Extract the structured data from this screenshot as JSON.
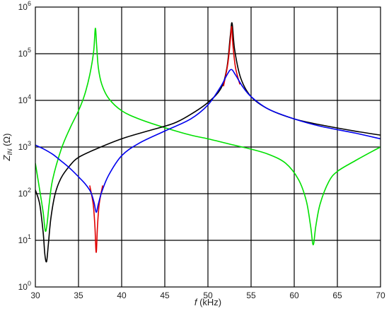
{
  "chart_data": {
    "type": "line",
    "title": "",
    "xlabel_symbol": "f",
    "xlabel_unit": " (kHz)",
    "ylabel_symbol": "Z",
    "ylabel_sub": "IN",
    "ylabel_unit": " (Ω)",
    "xlim": [
      30,
      70
    ],
    "ylim": [
      1,
      1000000
    ],
    "y_scale": "log",
    "grid": true,
    "legend": "none",
    "x_ticks": [
      30,
      35,
      40,
      45,
      50,
      55,
      60,
      65,
      70
    ],
    "y_ticks": [
      {
        "base": "10",
        "exp": "0"
      },
      {
        "base": "10",
        "exp": "1"
      },
      {
        "base": "10",
        "exp": "2"
      },
      {
        "base": "10",
        "exp": "3"
      },
      {
        "base": "10",
        "exp": "4"
      },
      {
        "base": "10",
        "exp": "5"
      },
      {
        "base": "10",
        "exp": "6"
      }
    ],
    "y_tick_values": [
      1,
      10,
      100,
      1000,
      10000,
      100000,
      1000000
    ],
    "series": [
      {
        "color": "#00e000",
        "x": [
          30,
          30.5,
          30.9,
          31.15,
          31.35,
          31.6,
          32,
          33,
          34,
          35,
          35.7,
          36.3,
          36.75,
          36.95,
          37.1,
          37.3,
          37.7,
          38.5,
          40,
          42,
          45,
          48,
          50,
          53,
          55,
          57,
          59,
          60.5,
          61.4,
          61.9,
          62.2,
          62.5,
          63,
          64,
          65,
          67,
          69,
          70
        ],
        "y": [
          450,
          120,
          40,
          16,
          22,
          60,
          200,
          900,
          2500,
          6000,
          13000,
          35000,
          110000,
          350000,
          150000,
          50000,
          22000,
          11000,
          6000,
          4000,
          2600,
          1800,
          1500,
          1100,
          900,
          700,
          450,
          200,
          70,
          20,
          8,
          20,
          60,
          180,
          300,
          500,
          800,
          1000
        ]
      },
      {
        "color": "#000000",
        "x": [
          30,
          30.5,
          30.9,
          31.1,
          31.3,
          31.5,
          31.8,
          32.3,
          33,
          34,
          35,
          37,
          40,
          43,
          46,
          48,
          50,
          51.5,
          52.2,
          52.6,
          52.8,
          53.1,
          53.8,
          55,
          57,
          60,
          63,
          67,
          70
        ],
        "y": [
          120,
          60,
          15,
          5,
          3.5,
          8,
          30,
          100,
          220,
          400,
          600,
          900,
          1500,
          2200,
          3200,
          5000,
          9000,
          18000,
          50000,
          250000,
          450000,
          120000,
          30000,
          12000,
          6500,
          4000,
          3000,
          2200,
          1800
        ]
      },
      {
        "color": "#e00000",
        "x": [
          36.3,
          36.7,
          36.9,
          37.05,
          37.2,
          37.4,
          37.8
        ],
        "y": [
          150,
          60,
          20,
          5.5,
          20,
          60,
          150
        ]
      },
      {
        "color": "#e00000",
        "x": [
          51.8,
          52.3,
          52.6,
          52.75,
          52.9,
          53.2,
          53.7
        ],
        "y": [
          20000,
          60000,
          200000,
          380000,
          150000,
          50000,
          22000
        ]
      },
      {
        "color": "#0000ee",
        "x": [
          30,
          31,
          32,
          33,
          34,
          35,
          35.8,
          36.4,
          36.8,
          37.05,
          37.3,
          37.7,
          38.5,
          40,
          42,
          45,
          48,
          50,
          51.5,
          52.2,
          52.7,
          53.2,
          54,
          55,
          57,
          60,
          63,
          67,
          70
        ],
        "y": [
          1100,
          900,
          700,
          500,
          350,
          230,
          160,
          110,
          65,
          40,
          60,
          110,
          250,
          650,
          1200,
          2200,
          4000,
          8000,
          20000,
          35000,
          46000,
          35000,
          20000,
          12000,
          6500,
          4000,
          2800,
          2000,
          1500
        ]
      }
    ]
  }
}
